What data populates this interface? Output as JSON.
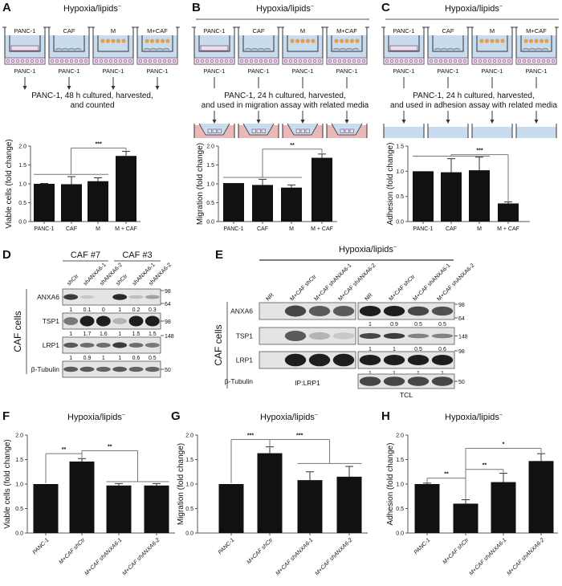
{
  "schematics": {
    "A": {
      "label": "A",
      "title": "Hypoxia/lipids",
      "title_sup": "−",
      "wells": [
        "PANC-1",
        "CAF",
        "M",
        "M+CAF"
      ],
      "bottom_label": "PANC-1",
      "text": [
        "PANC-1, 48 h cultured, harvested,",
        "and counted"
      ]
    },
    "B": {
      "label": "B",
      "title": "Hypoxia/lipids",
      "title_sup": "−",
      "wells": [
        "PANC-1",
        "CAF",
        "M",
        "M+CAF"
      ],
      "bottom_label": "PANC-1",
      "text": [
        "PANC-1, 24 h cultured, harvested,",
        "and used in migration assay with related media"
      ]
    },
    "C": {
      "label": "C",
      "title": "Hypoxia/lipids",
      "title_sup": "−",
      "wells": [
        "PANC-1",
        "CAF",
        "M",
        "M+CAF"
      ],
      "bottom_label": "PANC-1",
      "text": [
        "PANC-1, 24 h cultured, harvested,",
        "and used in adhesion assay with related media"
      ]
    }
  },
  "colors": {
    "bar": "#111111",
    "medium": "#c9dcee",
    "migration_chamber": "#eab8b8",
    "panc_cells": "#7a4a7a",
    "m_cells": "#e0a050",
    "caf_cells": "#8a8f99"
  },
  "chart_data": [
    {
      "panel": "A",
      "type": "bar",
      "title": "",
      "ylabel": "Viable cells (fold change)",
      "categories": [
        "PANC-1",
        "CAF",
        "M",
        "M + CAF"
      ],
      "values": [
        1.0,
        0.99,
        1.07,
        1.74
      ],
      "errors": [
        0.01,
        0.2,
        0.09,
        0.12
      ],
      "ylim": [
        0,
        2
      ],
      "yticks": [
        "0.0",
        "0.5",
        "1.0",
        "1.5",
        "2.0"
      ],
      "significance": [
        {
          "groups": [
            [
              0,
              1,
              2
            ],
            [
              3
            ]
          ],
          "label": "***"
        }
      ]
    },
    {
      "panel": "B",
      "type": "bar",
      "title": "",
      "ylabel": "Migration (fold change)",
      "categories": [
        "PANC-1",
        "CAF",
        "M",
        "M + CAF"
      ],
      "values": [
        1.02,
        0.97,
        0.9,
        1.69
      ],
      "errors": [
        0.0,
        0.15,
        0.07,
        0.1
      ],
      "ylim": [
        0,
        2
      ],
      "yticks": [
        "0.0",
        "0.5",
        "1.0",
        "1.5",
        "2.0"
      ],
      "significance": [
        {
          "groups": [
            [
              0,
              1,
              2
            ],
            [
              3
            ]
          ],
          "label": "**"
        }
      ]
    },
    {
      "panel": "C",
      "type": "bar",
      "title": "",
      "ylabel": "Adhesion (fold change)",
      "categories": [
        "PANC-1",
        "CAF",
        "M",
        "M + CAF"
      ],
      "values": [
        1.0,
        0.98,
        1.02,
        0.36
      ],
      "errors": [
        0.0,
        0.27,
        0.26,
        0.03
      ],
      "ylim": [
        0,
        1.5
      ],
      "yticks": [
        "0.0",
        "0.5",
        "1.0",
        "1.5"
      ],
      "significance": [
        {
          "groups": [
            [
              0,
              1,
              2
            ],
            [
              3
            ]
          ],
          "label": "***"
        }
      ]
    },
    {
      "panel": "F",
      "label": "F",
      "type": "bar",
      "title": "Hypoxia/lipids",
      "title_sup": "−",
      "ylabel": "Viable cells (fold change)",
      "categories": [
        "PANC-1",
        "M+CAF shCtr",
        "M+CAF shANXA6-1",
        "M+CAF shANXA6-2"
      ],
      "values": [
        1.0,
        1.46,
        0.97,
        0.97
      ],
      "errors": [
        0.0,
        0.06,
        0.04,
        0.04
      ],
      "ylim": [
        0,
        2
      ],
      "yticks": [
        "0.0",
        "0.5",
        "1.0",
        "1.5",
        "2.0"
      ],
      "significance": [
        {
          "groups": [
            [
              0
            ],
            [
              1
            ]
          ],
          "label": "**"
        },
        {
          "groups": [
            [
              1
            ],
            [
              2,
              3
            ]
          ],
          "label": "**"
        }
      ]
    },
    {
      "panel": "G",
      "label": "G",
      "type": "bar",
      "title": "Hypoxia/lipids",
      "title_sup": "−",
      "ylabel": "Migration (fold change)",
      "categories": [
        "PANC-1",
        "M+CAF shCtr",
        "M+CAF shANXA6-1",
        "M+CAF shANXA6-2"
      ],
      "values": [
        1.0,
        1.63,
        1.08,
        1.15
      ],
      "errors": [
        0.0,
        0.13,
        0.17,
        0.21
      ],
      "ylim": [
        0,
        2
      ],
      "yticks": [
        "0.0",
        "0.5",
        "1.0",
        "1.5",
        "2.0"
      ],
      "significance": [
        {
          "groups": [
            [
              0
            ],
            [
              1
            ]
          ],
          "label": "***"
        },
        {
          "groups": [
            [
              1
            ],
            [
              2,
              3
            ]
          ],
          "label": "***"
        }
      ]
    },
    {
      "panel": "H",
      "label": "H",
      "type": "bar",
      "title": "Hypoxia/lipids",
      "title_sup": "−",
      "ylabel": "Adhesion (fold change)",
      "categories": [
        "PANC-1",
        "M+CAF shCtr",
        "M+CAF shANXA6-1",
        "M+CAF shANXA6-2"
      ],
      "values": [
        1.0,
        0.6,
        1.04,
        1.47
      ],
      "errors": [
        0.02,
        0.08,
        0.18,
        0.15
      ],
      "ylim": [
        0,
        2
      ],
      "yticks": [
        "0.0",
        "0.5",
        "1.0",
        "1.5",
        "2.0"
      ],
      "significance": [
        {
          "groups": [
            [
              0
            ],
            [
              1
            ]
          ],
          "label": "**"
        },
        {
          "groups": [
            [
              1
            ],
            [
              2
            ]
          ],
          "label": "**"
        },
        {
          "groups": [
            [
              1
            ],
            [
              3
            ]
          ],
          "label": "*"
        }
      ]
    }
  ],
  "blots": {
    "D": {
      "label": "D",
      "groups": [
        "CAF #7",
        "CAF #3"
      ],
      "lanes": [
        "shCtr",
        "shANXA6-1",
        "shANXA6-2",
        "shCtr",
        "shANXA6-1",
        "shANXA6-2"
      ],
      "side_label": "CAF cells",
      "rows": [
        {
          "name": "ANXA6",
          "quant": [
            "1",
            "0.1",
            "0",
            "1",
            "0.2",
            "0.3"
          ],
          "mw": [
            "98",
            "64"
          ]
        },
        {
          "name": "TSP1",
          "quant": [
            "1",
            "1.7",
            "1.6",
            "1",
            "1.5",
            "1.5"
          ],
          "mw": [
            "98"
          ]
        },
        {
          "name": "LRP1",
          "quant": [
            "1",
            "0.9",
            "1",
            "1",
            "0.6",
            "0.5"
          ],
          "mw": [
            "148"
          ]
        },
        {
          "name": "β-Tubulin",
          "mw": [
            "50"
          ]
        }
      ]
    },
    "E": {
      "label": "E",
      "title": "Hypoxia/lipids",
      "title_sup": "−",
      "lanes_ip": [
        "NR",
        "M+CAF shCtr",
        "M+CAF shANXA6-1",
        "M+CAF shANXA6-2"
      ],
      "lanes_tcl": [
        "NR",
        "M+CAF shCtr",
        "M+CAF shANXA6-1",
        "M+CAF shANXA6-2"
      ],
      "ip_label": "IP:LRP1",
      "tcl_label": "TCL",
      "side_label": "CAF cells",
      "rows": [
        {
          "name": "ANXA6",
          "quant": [
            "1",
            "0.9",
            "0.5",
            "0.5"
          ],
          "mw": [
            "98",
            "64"
          ]
        },
        {
          "name": "TSP1",
          "quant": [
            "1",
            "1",
            "0.5",
            "0.6"
          ],
          "mw": [
            "148"
          ]
        },
        {
          "name": "LRP1",
          "quant": [
            "1",
            "1",
            "1",
            "1"
          ],
          "mw": [
            "98"
          ]
        },
        {
          "name": "β-Tubulin",
          "mw": [
            "50"
          ]
        }
      ]
    }
  }
}
